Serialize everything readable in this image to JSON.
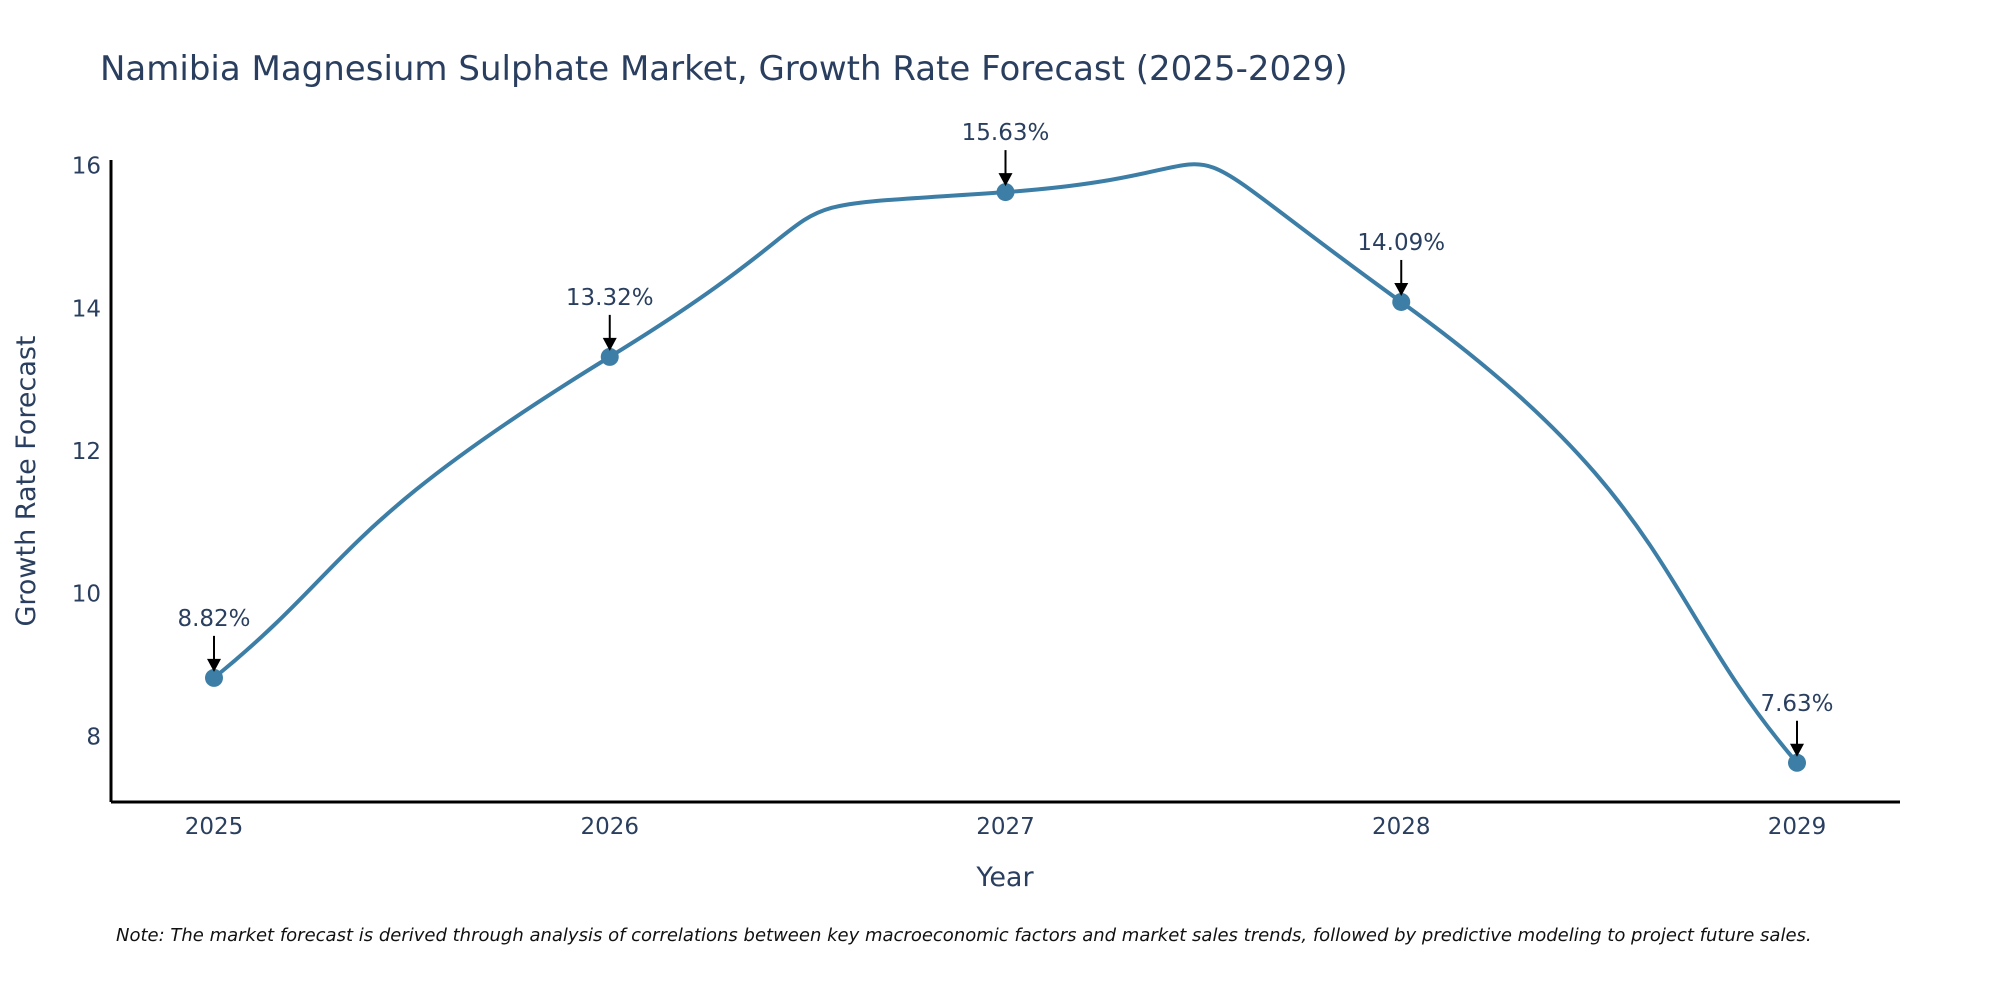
{
  "chart_data": {
    "type": "line",
    "title": "Namibia Magnesium Sulphate Market, Growth Rate Forecast (2025-2029)",
    "xlabel": "Year",
    "ylabel": "Growth Rate Forecast",
    "categories": [
      "2025",
      "2026",
      "2027",
      "2028",
      "2029"
    ],
    "values": [
      8.82,
      13.32,
      15.63,
      14.09,
      7.63
    ],
    "data_labels": [
      "8.82%",
      "13.32%",
      "15.63%",
      "14.09%",
      "7.63%"
    ],
    "y_ticks": [
      8,
      10,
      12,
      14,
      16
    ],
    "y_tick_labels": [
      "8",
      "10",
      "12",
      "14",
      "16"
    ],
    "ylim": [
      7.08,
      16.08
    ],
    "grid": false,
    "line_shape": "spline",
    "colors": {
      "line": "#3d7ea6",
      "marker": "#3d7ea6",
      "axis": "#000000",
      "text": "#2a3f5f"
    },
    "note": "Note: The market forecast is derived through analysis of correlations between key macroeconomic factors and market sales trends, followed by predictive modeling to project future sales."
  }
}
